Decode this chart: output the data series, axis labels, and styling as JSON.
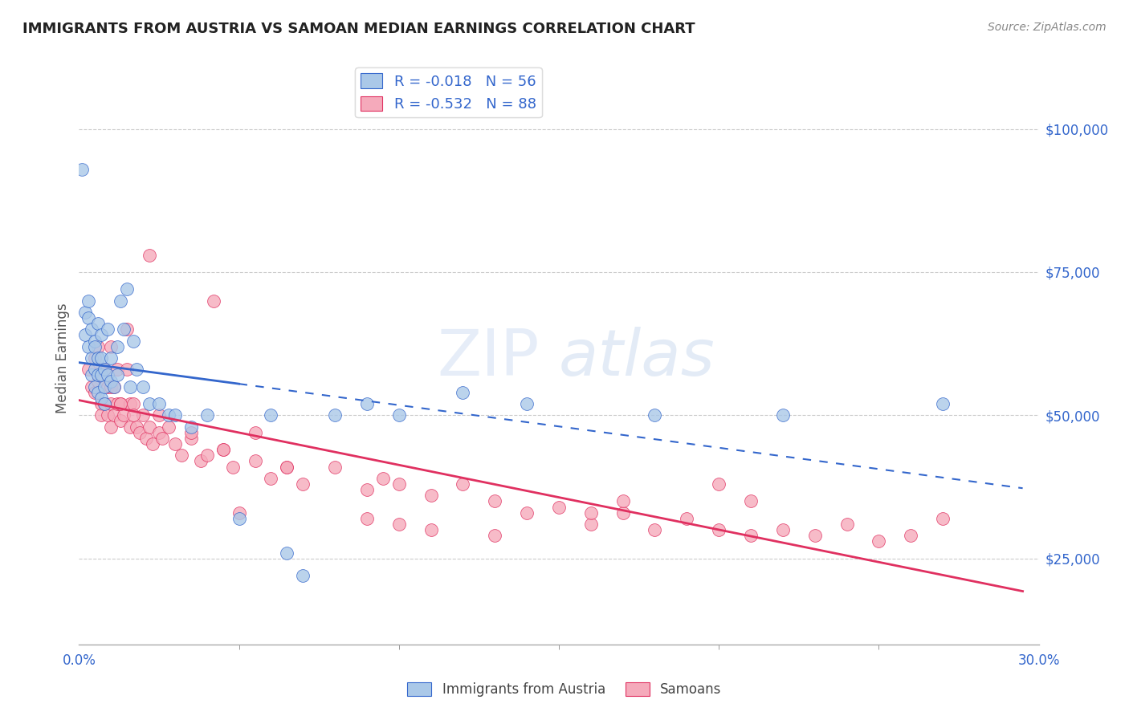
{
  "title": "IMMIGRANTS FROM AUSTRIA VS SAMOAN MEDIAN EARNINGS CORRELATION CHART",
  "source": "Source: ZipAtlas.com",
  "ylabel": "Median Earnings",
  "xlim": [
    0.0,
    0.3
  ],
  "ylim": [
    10000,
    110000
  ],
  "yticks": [
    25000,
    50000,
    75000,
    100000
  ],
  "ytick_labels": [
    "$25,000",
    "$50,000",
    "$75,000",
    "$100,000"
  ],
  "xtick_left_label": "0.0%",
  "xtick_right_label": "30.0%",
  "austria_color": "#aac8e8",
  "samoa_color": "#f5aabb",
  "austria_line_color": "#3366cc",
  "samoa_line_color": "#e03060",
  "austria_R": -0.018,
  "austria_N": 56,
  "samoa_R": -0.532,
  "samoa_N": 88,
  "austria_scatter_x": [
    0.001,
    0.002,
    0.002,
    0.003,
    0.003,
    0.003,
    0.004,
    0.004,
    0.004,
    0.005,
    0.005,
    0.005,
    0.005,
    0.006,
    0.006,
    0.006,
    0.006,
    0.007,
    0.007,
    0.007,
    0.007,
    0.008,
    0.008,
    0.008,
    0.009,
    0.009,
    0.01,
    0.01,
    0.011,
    0.012,
    0.012,
    0.013,
    0.014,
    0.015,
    0.016,
    0.017,
    0.018,
    0.02,
    0.022,
    0.025,
    0.028,
    0.03,
    0.035,
    0.04,
    0.05,
    0.06,
    0.065,
    0.07,
    0.08,
    0.09,
    0.1,
    0.12,
    0.14,
    0.18,
    0.22,
    0.27
  ],
  "austria_scatter_y": [
    93000,
    64000,
    68000,
    62000,
    70000,
    67000,
    65000,
    60000,
    57000,
    63000,
    58000,
    55000,
    62000,
    66000,
    60000,
    57000,
    54000,
    64000,
    60000,
    57000,
    53000,
    58000,
    55000,
    52000,
    65000,
    57000,
    60000,
    56000,
    55000,
    62000,
    57000,
    70000,
    65000,
    72000,
    55000,
    63000,
    58000,
    55000,
    52000,
    52000,
    50000,
    50000,
    48000,
    50000,
    32000,
    50000,
    26000,
    22000,
    50000,
    52000,
    50000,
    54000,
    52000,
    50000,
    50000,
    52000
  ],
  "samoa_scatter_x": [
    0.003,
    0.004,
    0.005,
    0.005,
    0.006,
    0.006,
    0.007,
    0.007,
    0.007,
    0.008,
    0.008,
    0.009,
    0.009,
    0.01,
    0.01,
    0.01,
    0.011,
    0.011,
    0.012,
    0.012,
    0.013,
    0.013,
    0.014,
    0.015,
    0.015,
    0.016,
    0.016,
    0.017,
    0.018,
    0.019,
    0.02,
    0.021,
    0.022,
    0.023,
    0.025,
    0.025,
    0.026,
    0.028,
    0.03,
    0.032,
    0.035,
    0.038,
    0.04,
    0.042,
    0.045,
    0.048,
    0.05,
    0.055,
    0.06,
    0.065,
    0.07,
    0.08,
    0.09,
    0.095,
    0.1,
    0.11,
    0.12,
    0.13,
    0.14,
    0.15,
    0.16,
    0.17,
    0.18,
    0.19,
    0.2,
    0.21,
    0.22,
    0.23,
    0.24,
    0.25,
    0.26,
    0.27,
    0.2,
    0.21,
    0.17,
    0.16,
    0.09,
    0.1,
    0.11,
    0.13,
    0.035,
    0.045,
    0.055,
    0.065,
    0.022,
    0.017,
    0.013,
    0.01
  ],
  "samoa_scatter_y": [
    58000,
    55000,
    60000,
    54000,
    62000,
    56000,
    58000,
    52000,
    50000,
    58000,
    52000,
    55000,
    50000,
    55000,
    52000,
    48000,
    55000,
    50000,
    58000,
    52000,
    52000,
    49000,
    50000,
    65000,
    58000,
    52000,
    48000,
    52000,
    48000,
    47000,
    50000,
    46000,
    48000,
    45000,
    50000,
    47000,
    46000,
    48000,
    45000,
    43000,
    46000,
    42000,
    43000,
    70000,
    44000,
    41000,
    33000,
    42000,
    39000,
    41000,
    38000,
    41000,
    37000,
    39000,
    38000,
    36000,
    38000,
    35000,
    33000,
    34000,
    31000,
    33000,
    30000,
    32000,
    30000,
    29000,
    30000,
    29000,
    31000,
    28000,
    29000,
    32000,
    38000,
    35000,
    35000,
    33000,
    32000,
    31000,
    30000,
    29000,
    47000,
    44000,
    47000,
    41000,
    78000,
    50000,
    52000,
    62000
  ]
}
